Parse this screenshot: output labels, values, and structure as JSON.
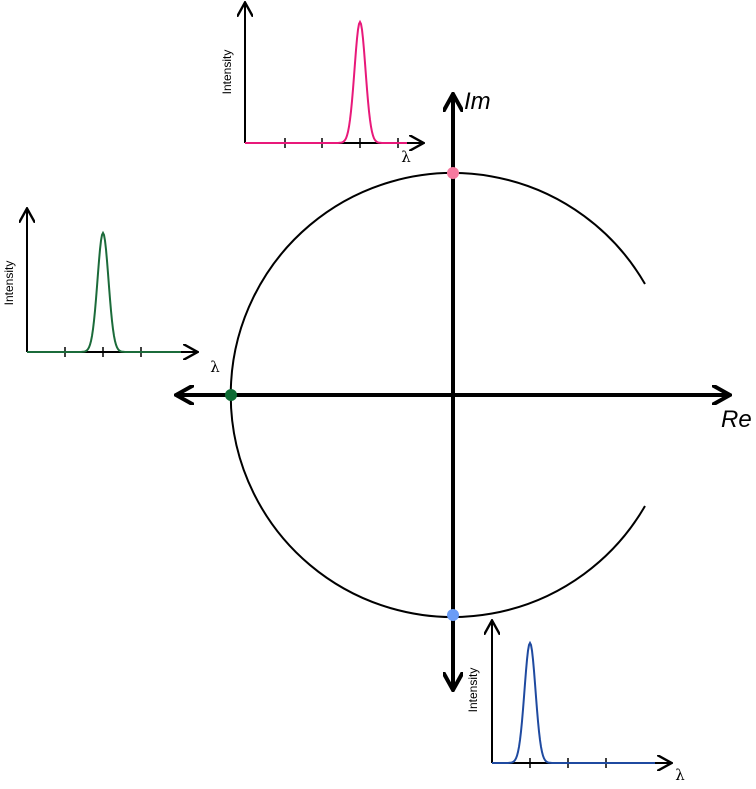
{
  "main_axes": {
    "imaginary_label": "Im",
    "real_label": "Re"
  },
  "insets": [
    {
      "y_label": "Intensity",
      "x_label": "λ"
    },
    {
      "y_label": "Intensity",
      "x_label": "λ"
    },
    {
      "y_label": "Intensity",
      "x_label": "λ"
    }
  ]
}
